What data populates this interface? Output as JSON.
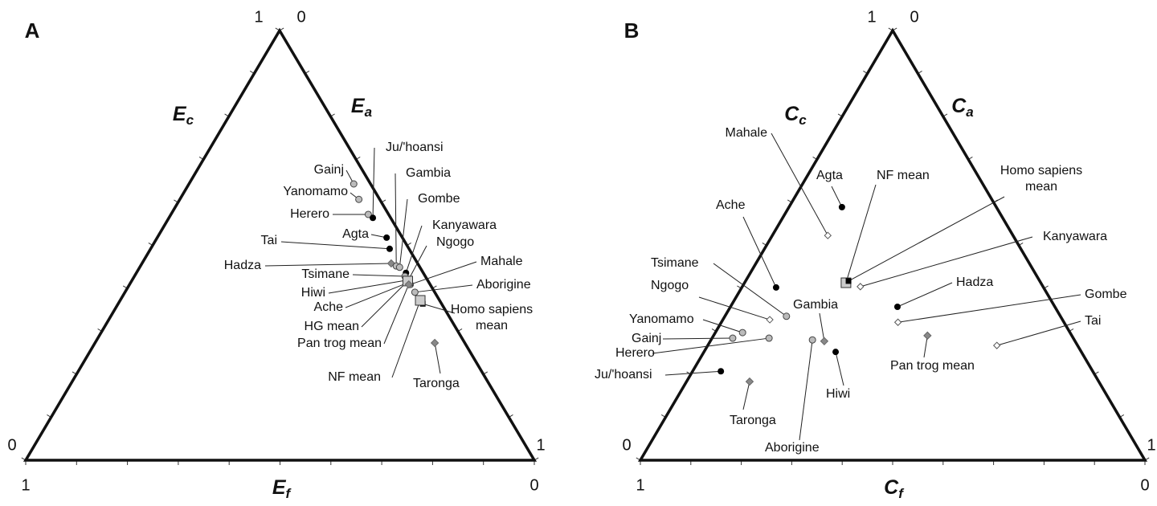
{
  "chart_data": [
    {
      "type": "ternary",
      "panel": "A",
      "axes": {
        "c": {
          "symbol": "E",
          "sub": "c"
        },
        "a": {
          "symbol": "E",
          "sub": "a"
        },
        "f": {
          "symbol": "E",
          "sub": "f"
        }
      },
      "ticks": [
        0,
        0.1,
        0.2,
        0.3,
        0.4,
        0.5,
        0.6,
        0.7,
        0.8,
        0.9,
        1
      ],
      "points": [
        {
          "name": "Gainj",
          "marker": "gray-circle",
          "c": 0.643,
          "a": 0.324,
          "f": 0.033
        },
        {
          "name": "Yanomamo",
          "marker": "gray-circle",
          "c": 0.607,
          "a": 0.352,
          "f": 0.041
        },
        {
          "name": "Herero",
          "marker": "gray-circle",
          "c": 0.572,
          "a": 0.388,
          "f": 0.04
        },
        {
          "name": "Ju/'hoansi",
          "marker": "black-dot",
          "c": 0.564,
          "a": 0.401,
          "f": 0.035
        },
        {
          "name": "Agta",
          "marker": "black-dot",
          "c": 0.518,
          "a": 0.451,
          "f": 0.031
        },
        {
          "name": "Tai",
          "marker": "black-dot",
          "c": 0.492,
          "a": 0.47,
          "f": 0.038
        },
        {
          "name": "Hadza",
          "marker": "gray-diamond",
          "c": 0.458,
          "a": 0.49,
          "f": 0.052
        },
        {
          "name": "Gambia",
          "marker": "gray-circle",
          "c": 0.452,
          "a": 0.503,
          "f": 0.045
        },
        {
          "name": "Gombe",
          "marker": "gray-circle",
          "c": 0.449,
          "a": 0.511,
          "f": 0.04
        },
        {
          "name": "Kanyawara",
          "marker": "black-dot",
          "c": 0.436,
          "a": 0.53,
          "f": 0.034
        },
        {
          "name": "Ngogo",
          "marker": "gray-circle",
          "c": 0.421,
          "a": 0.543,
          "f": 0.036
        },
        {
          "name": "Tsimane",
          "marker": "gray-circle",
          "c": 0.428,
          "a": 0.532,
          "f": 0.04
        },
        {
          "name": "Mahale",
          "marker": "gray-circle",
          "c": 0.409,
          "a": 0.552,
          "f": 0.039
        },
        {
          "name": "Aborigine",
          "marker": "gray-circle",
          "c": 0.391,
          "a": 0.57,
          "f": 0.039
        },
        {
          "name": "Hiwi",
          "marker": "gray-diamond",
          "c": 0.419,
          "a": 0.54,
          "f": 0.041
        },
        {
          "name": "Ache",
          "marker": "gray-circle",
          "c": 0.413,
          "a": 0.545,
          "f": 0.042
        },
        {
          "name": "HG mean",
          "marker": "gray-square",
          "c": 0.417,
          "a": 0.543,
          "f": 0.04
        },
        {
          "name": "Pan trog mean",
          "marker": "gray-diamond",
          "c": 0.409,
          "a": 0.549,
          "f": 0.042
        },
        {
          "name": "Homo sapiens mean",
          "marker": "black-square",
          "c": 0.364,
          "a": 0.599,
          "f": 0.037
        },
        {
          "name": "NF mean",
          "marker": "gray-square",
          "c": 0.372,
          "a": 0.59,
          "f": 0.038
        },
        {
          "name": "Taronga",
          "marker": "gray-diamond",
          "c": 0.273,
          "a": 0.668,
          "f": 0.059
        }
      ]
    },
    {
      "type": "ternary",
      "panel": "B",
      "axes": {
        "c": {
          "symbol": "C",
          "sub": "c"
        },
        "a": {
          "symbol": "C",
          "sub": "a"
        },
        "f": {
          "symbol": "C",
          "sub": "f"
        }
      },
      "ticks": [
        0,
        0.1,
        0.2,
        0.3,
        0.4,
        0.5,
        0.6,
        0.7,
        0.8,
        0.9,
        1
      ],
      "points": [
        {
          "name": "Mahale",
          "marker": "open-diamond",
          "c": 0.523,
          "a": 0.11,
          "f": 0.367
        },
        {
          "name": "Agta",
          "marker": "black-dot",
          "c": 0.589,
          "a": 0.105,
          "f": 0.306
        },
        {
          "name": "NF mean",
          "marker": "gray-square",
          "c": 0.413,
          "a": 0.201,
          "f": 0.386
        },
        {
          "name": "Homo sapiens mean",
          "marker": "black-square",
          "c": 0.417,
          "a": 0.204,
          "f": 0.379
        },
        {
          "name": "Ache",
          "marker": "black-dot",
          "c": 0.402,
          "a": 0.068,
          "f": 0.53
        },
        {
          "name": "Kanyawara",
          "marker": "open-diamond",
          "c": 0.404,
          "a": 0.234,
          "f": 0.362
        },
        {
          "name": "Tsimane",
          "marker": "gray-circle",
          "c": 0.335,
          "a": 0.122,
          "f": 0.543
        },
        {
          "name": "Ngogo",
          "marker": "open-diamond",
          "c": 0.327,
          "a": 0.093,
          "f": 0.58
        },
        {
          "name": "Gambia",
          "marker": "gray-diamond",
          "c": 0.277,
          "a": 0.226,
          "f": 0.497
        },
        {
          "name": "Hadza",
          "marker": "black-dot",
          "c": 0.357,
          "a": 0.331,
          "f": 0.312
        },
        {
          "name": "Gombe",
          "marker": "open-diamond",
          "c": 0.321,
          "a": 0.35,
          "f": 0.329
        },
        {
          "name": "Tai",
          "marker": "open-diamond",
          "c": 0.267,
          "a": 0.573,
          "f": 0.16
        },
        {
          "name": "Pan trog mean",
          "marker": "gray-diamond",
          "c": 0.29,
          "a": 0.424,
          "f": 0.286
        },
        {
          "name": "Yanomamo",
          "marker": "gray-circle",
          "c": 0.297,
          "a": 0.054,
          "f": 0.649
        },
        {
          "name": "Gainj",
          "marker": "gray-circle",
          "c": 0.284,
          "a": 0.041,
          "f": 0.675
        },
        {
          "name": "Herero",
          "marker": "gray-circle",
          "c": 0.284,
          "a": 0.113,
          "f": 0.603
        },
        {
          "name": "Ju/'hoansi",
          "marker": "black-dot",
          "c": 0.207,
          "a": 0.056,
          "f": 0.737
        },
        {
          "name": "Hiwi",
          "marker": "black-dot",
          "c": 0.252,
          "a": 0.261,
          "f": 0.487
        },
        {
          "name": "Taronga",
          "marker": "gray-diamond",
          "c": 0.183,
          "a": 0.125,
          "f": 0.692
        },
        {
          "name": "Aborigine",
          "marker": "gray-circle",
          "c": 0.28,
          "a": 0.201,
          "f": 0.519
        }
      ]
    }
  ]
}
